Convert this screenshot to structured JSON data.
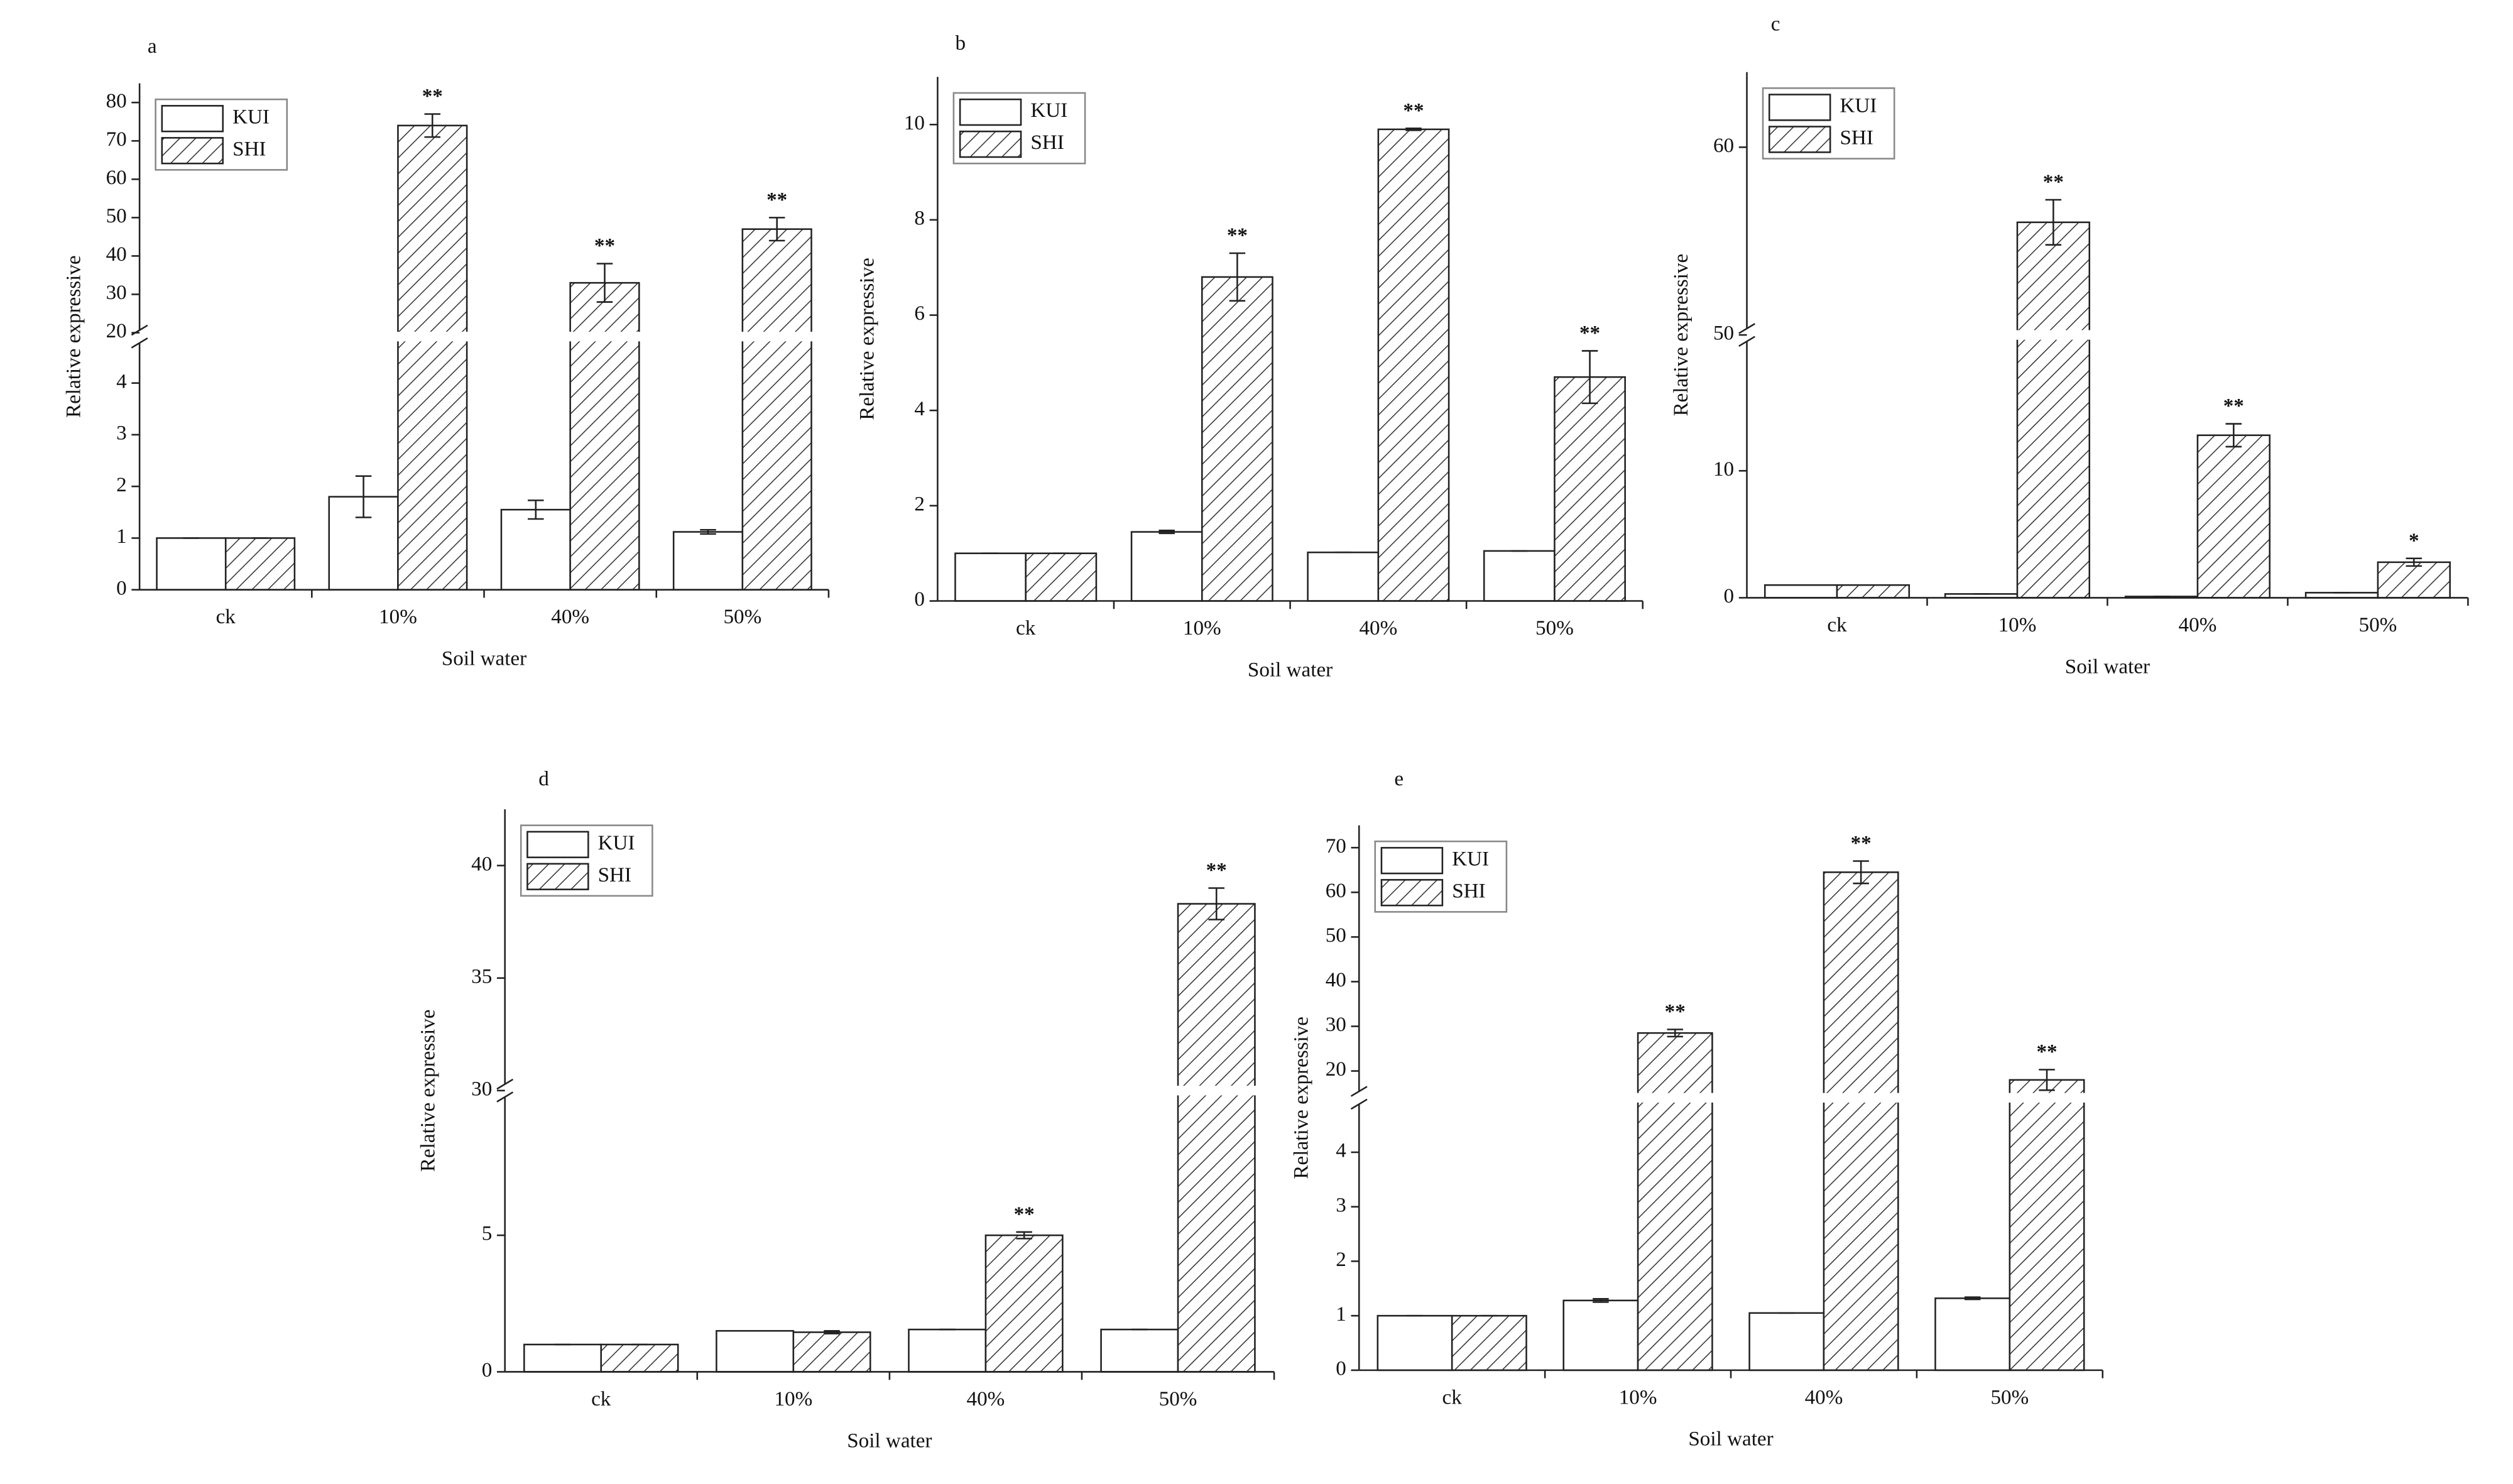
{
  "chart_data": [
    {
      "type": "bar",
      "title": "a",
      "x_label": "Soil water",
      "y_label": "Relative expressive",
      "categories": [
        "ck",
        "10%",
        "40%",
        "50%"
      ],
      "series": [
        {
          "name": "KUI",
          "color": "#ffffff",
          "values": [
            1,
            1.8,
            1.55,
            1.12
          ],
          "errors": [
            0,
            0.4,
            0.18,
            0.04
          ]
        },
        {
          "name": "SHI",
          "color": "#ffffff",
          "hatch": true,
          "values": [
            1,
            74,
            33,
            47
          ],
          "errors": [
            0,
            3,
            5,
            3
          ],
          "significance": [
            null,
            "**",
            "**",
            "**"
          ]
        }
      ],
      "ylim": [
        0,
        85
      ],
      "ybreak": [
        4.9,
        19
      ],
      "yticks": [
        0,
        1,
        2,
        3,
        4,
        20,
        30,
        40,
        50,
        60,
        70,
        80
      ],
      "legend": "upper left"
    },
    {
      "type": "bar",
      "title": "b",
      "x_label": "Soil water",
      "y_label": "Relative expressive",
      "categories": [
        "ck",
        "10%",
        "40%",
        "50%"
      ],
      "series": [
        {
          "name": "KUI",
          "color": "#ffffff",
          "values": [
            1,
            1.45,
            1.02,
            1.05
          ],
          "errors": [
            0,
            0.03,
            0,
            0
          ]
        },
        {
          "name": "SHI",
          "color": "#ffffff",
          "hatch": true,
          "values": [
            1,
            6.8,
            9.9,
            4.7
          ],
          "errors": [
            0,
            0.5,
            0.02,
            0.55
          ],
          "significance": [
            null,
            "**",
            "**",
            "**"
          ]
        }
      ],
      "ylim": [
        0,
        11
      ],
      "yticks": [
        0,
        2,
        4,
        6,
        8,
        10
      ],
      "legend": "upper left"
    },
    {
      "type": "bar",
      "title": "c",
      "x_label": "Soil water",
      "y_label": "Relative expressive",
      "categories": [
        "ck",
        "10%",
        "40%",
        "50%"
      ],
      "series": [
        {
          "name": "KUI",
          "color": "#ffffff",
          "values": [
            1,
            0.3,
            0.1,
            0.4
          ],
          "errors": [
            0,
            0,
            0,
            0
          ]
        },
        {
          "name": "SHI",
          "color": "#ffffff",
          "hatch": true,
          "values": [
            1,
            56,
            12.8,
            2.8
          ],
          "errors": [
            0,
            1.2,
            0.9,
            0.3
          ],
          "significance": [
            null,
            "**",
            "**",
            "*"
          ]
        }
      ],
      "ylim": [
        0,
        64
      ],
      "ybreak": [
        20.7,
        50
      ],
      "yticks": [
        0,
        10,
        50,
        60
      ],
      "legend": "upper left"
    },
    {
      "type": "bar",
      "title": "d",
      "x_label": "Soil water",
      "y_label": "Relative expressive",
      "categories": [
        "ck",
        "10%",
        "40%",
        "50%"
      ],
      "series": [
        {
          "name": "KUI",
          "color": "#ffffff",
          "values": [
            1,
            1.5,
            1.55,
            1.55
          ],
          "errors": [
            0,
            0,
            0,
            0
          ]
        },
        {
          "name": "SHI",
          "color": "#ffffff",
          "hatch": true,
          "values": [
            1,
            1.45,
            5.0,
            38.3
          ],
          "errors": [
            0,
            0.05,
            0.12,
            0.7
          ],
          "significance": [
            null,
            null,
            "**",
            "**"
          ]
        }
      ],
      "ylim": [
        0,
        42.5
      ],
      "ybreak": [
        10.3,
        30
      ],
      "yticks": [
        0,
        5,
        30,
        35,
        40
      ],
      "legend": "upper left"
    },
    {
      "type": "bar",
      "title": "e",
      "x_label": "Soil water",
      "y_label": "Relative expressive",
      "categories": [
        "ck",
        "10%",
        "40%",
        "50%"
      ],
      "series": [
        {
          "name": "KUI",
          "color": "#ffffff",
          "values": [
            1,
            1.28,
            1.05,
            1.32
          ],
          "errors": [
            0,
            0.03,
            0,
            0.02
          ]
        },
        {
          "name": "SHI",
          "color": "#ffffff",
          "hatch": true,
          "values": [
            1,
            28.5,
            64.5,
            18
          ],
          "errors": [
            0,
            0.8,
            2.5,
            2.3
          ],
          "significance": [
            null,
            "**",
            "**",
            "**"
          ]
        }
      ],
      "ylim": [
        0,
        75
      ],
      "ybreak": [
        5,
        14
      ],
      "yticks": [
        0,
        1,
        2,
        3,
        4,
        20,
        30,
        40,
        50,
        60,
        70
      ],
      "legend": "upper left"
    }
  ]
}
